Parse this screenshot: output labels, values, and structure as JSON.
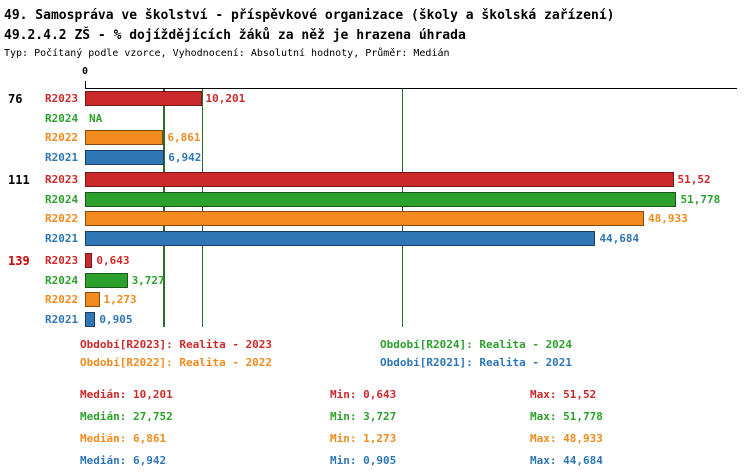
{
  "header": {
    "title1": "49. Samospráva ve školství - příspěvkové organizace (školy a školská zařízení)",
    "title2": "49.2.4.2 ZŠ - % dojíždějících žáků za něž je hrazena úhrada",
    "subtitle": "Typ: Počítaný podle vzorce, Vyhodnocení: Absolutní hodnoty, Průměr: Medián"
  },
  "colors": {
    "R2023": "#cc2a2a",
    "R2024": "#2ca02c",
    "R2022": "#f28a1e",
    "R2021": "#2e76b5",
    "median_line": "#2d6a2d",
    "axis": "#000000"
  },
  "chart_data": {
    "type": "bar",
    "orientation": "horizontal",
    "zero_label": "0",
    "xlim": [
      0,
      56.9
    ],
    "xmax": 56.9,
    "grid": "median-lines-only",
    "series_order": [
      "R2023",
      "R2024",
      "R2022",
      "R2021"
    ],
    "median_lines": [
      10.201,
      27.752,
      6.861,
      6.942
    ],
    "groups": [
      {
        "label": "76",
        "label_color": "#000000",
        "bars": [
          {
            "series": "R2023",
            "value": 10.201,
            "label": "10,201"
          },
          {
            "series": "R2024",
            "value": null,
            "label": "NA"
          },
          {
            "series": "R2022",
            "value": 6.861,
            "label": "6,861"
          },
          {
            "series": "R2021",
            "value": 6.942,
            "label": "6,942"
          }
        ]
      },
      {
        "label": "111",
        "label_color": "#000000",
        "bars": [
          {
            "series": "R2023",
            "value": 51.52,
            "label": "51,52"
          },
          {
            "series": "R2024",
            "value": 51.778,
            "label": "51,778"
          },
          {
            "series": "R2022",
            "value": 48.933,
            "label": "48,933"
          },
          {
            "series": "R2021",
            "value": 44.684,
            "label": "44,684"
          }
        ]
      },
      {
        "label": "139",
        "label_color": "#cc0000",
        "bars": [
          {
            "series": "R2023",
            "value": 0.643,
            "label": "0,643"
          },
          {
            "series": "R2024",
            "value": 3.727,
            "label": "3,727"
          },
          {
            "series": "R2022",
            "value": 1.273,
            "label": "1,273"
          },
          {
            "series": "R2021",
            "value": 0.905,
            "label": "0,905"
          }
        ]
      }
    ]
  },
  "legend": {
    "items": [
      {
        "series": "R2023",
        "text": "Období[R2023]: Realita - 2023"
      },
      {
        "series": "R2024",
        "text": "Období[R2024]: Realita - 2024"
      },
      {
        "series": "R2022",
        "text": "Období[R2022]: Realita - 2022"
      },
      {
        "series": "R2021",
        "text": "Období[R2021]: Realita - 2021"
      }
    ]
  },
  "stats": {
    "rows": [
      {
        "series": "R2023",
        "median": "Medián: 10,201",
        "min": "Min: 0,643",
        "max": "Max: 51,52"
      },
      {
        "series": "R2024",
        "median": "Medián: 27,752",
        "min": "Min: 3,727",
        "max": "Max: 51,778"
      },
      {
        "series": "R2022",
        "median": "Medián: 6,861",
        "min": "Min: 1,273",
        "max": "Max: 48,933"
      },
      {
        "series": "R2021",
        "median": "Medián: 6,942",
        "min": "Min: 0,905",
        "max": "Max: 44,684"
      }
    ]
  }
}
